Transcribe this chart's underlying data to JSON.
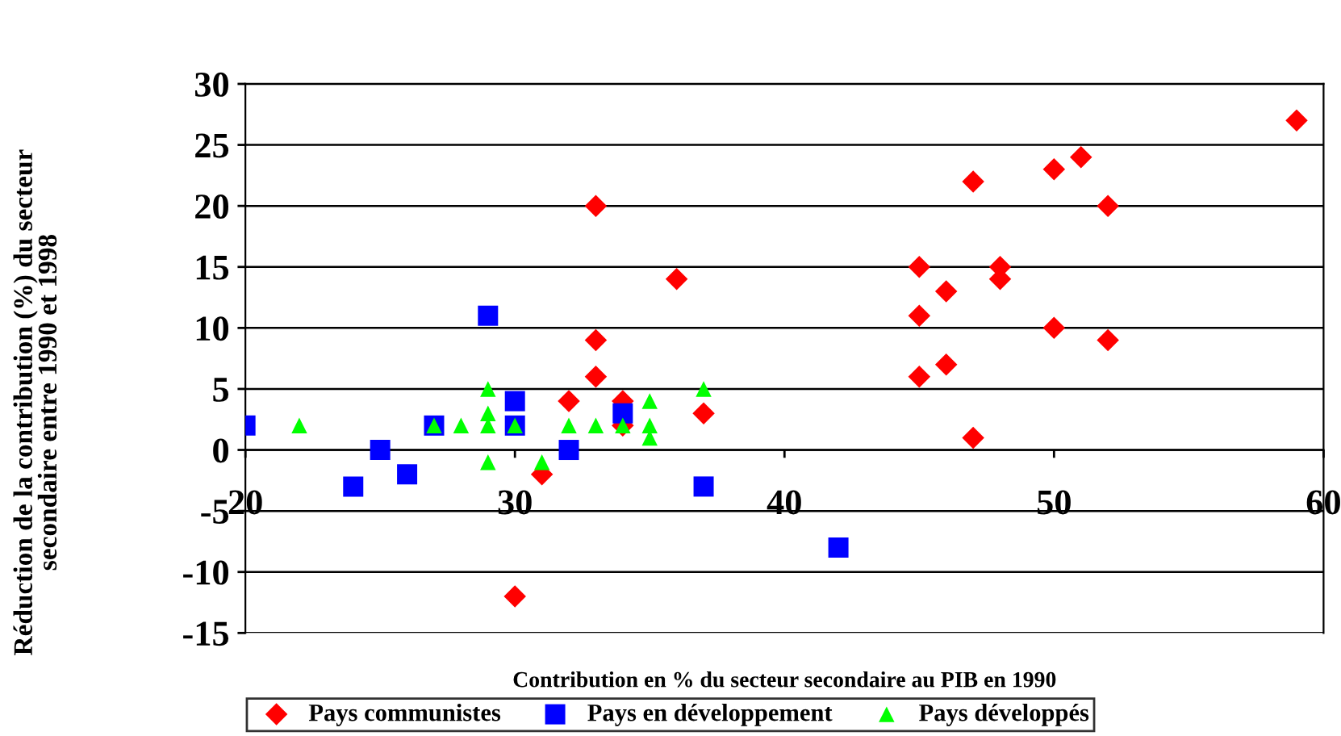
{
  "chart_data": {
    "type": "scatter",
    "xlabel": "Contribution en % du secteur secondaire au PIB en 1990",
    "ylabel": "Réduction de la contribution (%) du secteur\nsecondaire entre 1990 et 1998",
    "xlim": [
      20,
      60
    ],
    "xticks": [
      20,
      30,
      40,
      50,
      60
    ],
    "ylim": [
      -15,
      30
    ],
    "yticks": [
      -15,
      -10,
      -5,
      0,
      5,
      10,
      15,
      20,
      25,
      30
    ],
    "grid": "y",
    "legend": "bottom",
    "series": [
      {
        "name": "Pays communistes",
        "color": "#ff0000",
        "marker": "diamond",
        "x": [
          33,
          36,
          33,
          33,
          32,
          34,
          34,
          37,
          31,
          30,
          45,
          45,
          46,
          45,
          46,
          47,
          47,
          48,
          48,
          50,
          51,
          52,
          50,
          52,
          59
        ],
        "values": [
          20,
          14,
          9,
          6,
          4,
          4,
          2,
          3,
          -2,
          -12,
          15,
          11,
          13,
          6,
          7,
          22,
          1,
          15,
          14,
          23,
          24,
          20,
          10,
          9,
          27
        ]
      },
      {
        "name": "Pays en développement",
        "color": "#0000ff",
        "marker": "square",
        "x": [
          20,
          24,
          25,
          26,
          27,
          29,
          30,
          30,
          32,
          34,
          37,
          42
        ],
        "values": [
          2,
          -3,
          0,
          -2,
          2,
          11,
          4,
          2,
          0,
          3,
          -3,
          -8
        ]
      },
      {
        "name": "Pays développés",
        "color": "#00ff00",
        "marker": "triangle",
        "x": [
          22,
          27,
          28,
          29,
          29,
          29,
          29,
          30,
          31,
          32,
          33,
          34,
          35,
          35,
          35,
          37
        ],
        "values": [
          2,
          2,
          2,
          5,
          3,
          2,
          -1,
          2,
          -1,
          2,
          2,
          2,
          4,
          2,
          1,
          5
        ]
      }
    ]
  }
}
